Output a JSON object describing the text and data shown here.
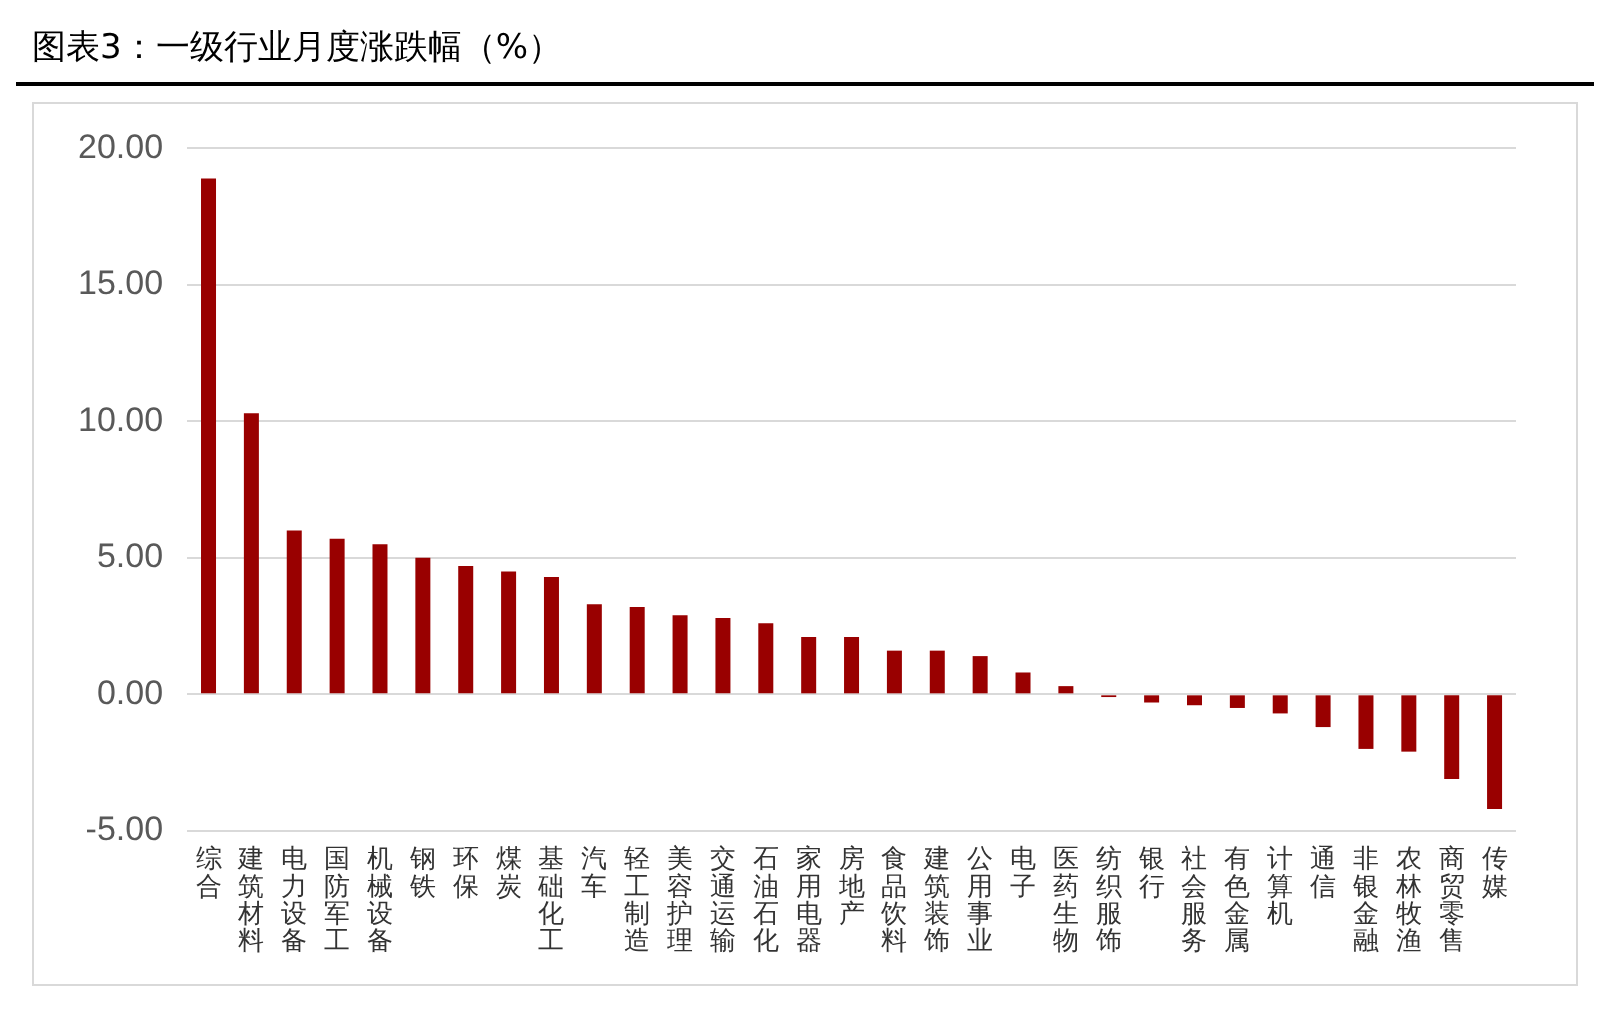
{
  "chart_data": {
    "type": "bar",
    "title": "图表3：一级行业月度涨跌幅（%）",
    "categories": [
      "综合",
      "建筑材料",
      "电力设备",
      "国防军工",
      "机械设备",
      "钢铁",
      "环保",
      "煤炭",
      "基础化工",
      "汽车",
      "轻工制造",
      "美容护理",
      "交通运输",
      "石油石化",
      "家用电器",
      "房地产",
      "食品饮料",
      "建筑装饰",
      "公用事业",
      "电子",
      "医药生物",
      "纺织服饰",
      "银行",
      "社会服务",
      "有色金属",
      "计算机",
      "通信",
      "非银金融",
      "农林牧渔",
      "商贸零售",
      "传媒"
    ],
    "values": [
      18.9,
      10.3,
      6.0,
      5.7,
      5.5,
      5.0,
      4.7,
      4.5,
      4.3,
      3.3,
      3.2,
      2.9,
      2.8,
      2.6,
      2.1,
      2.1,
      1.6,
      1.6,
      1.4,
      0.8,
      0.3,
      -0.1,
      -0.3,
      -0.4,
      -0.5,
      -0.7,
      -1.2,
      -2.0,
      -2.1,
      -3.1,
      -4.2
    ],
    "color": "#990000",
    "ylim": [
      -5,
      20
    ],
    "yticks": [
      {
        "value": -5,
        "label": "-5.00"
      },
      {
        "value": 0,
        "label": "0.00"
      },
      {
        "value": 5,
        "label": "5.00"
      },
      {
        "value": 10,
        "label": "10.00"
      },
      {
        "value": 15,
        "label": "15.00"
      },
      {
        "value": 20,
        "label": "20.00"
      }
    ],
    "grid": "y",
    "legend": false
  }
}
